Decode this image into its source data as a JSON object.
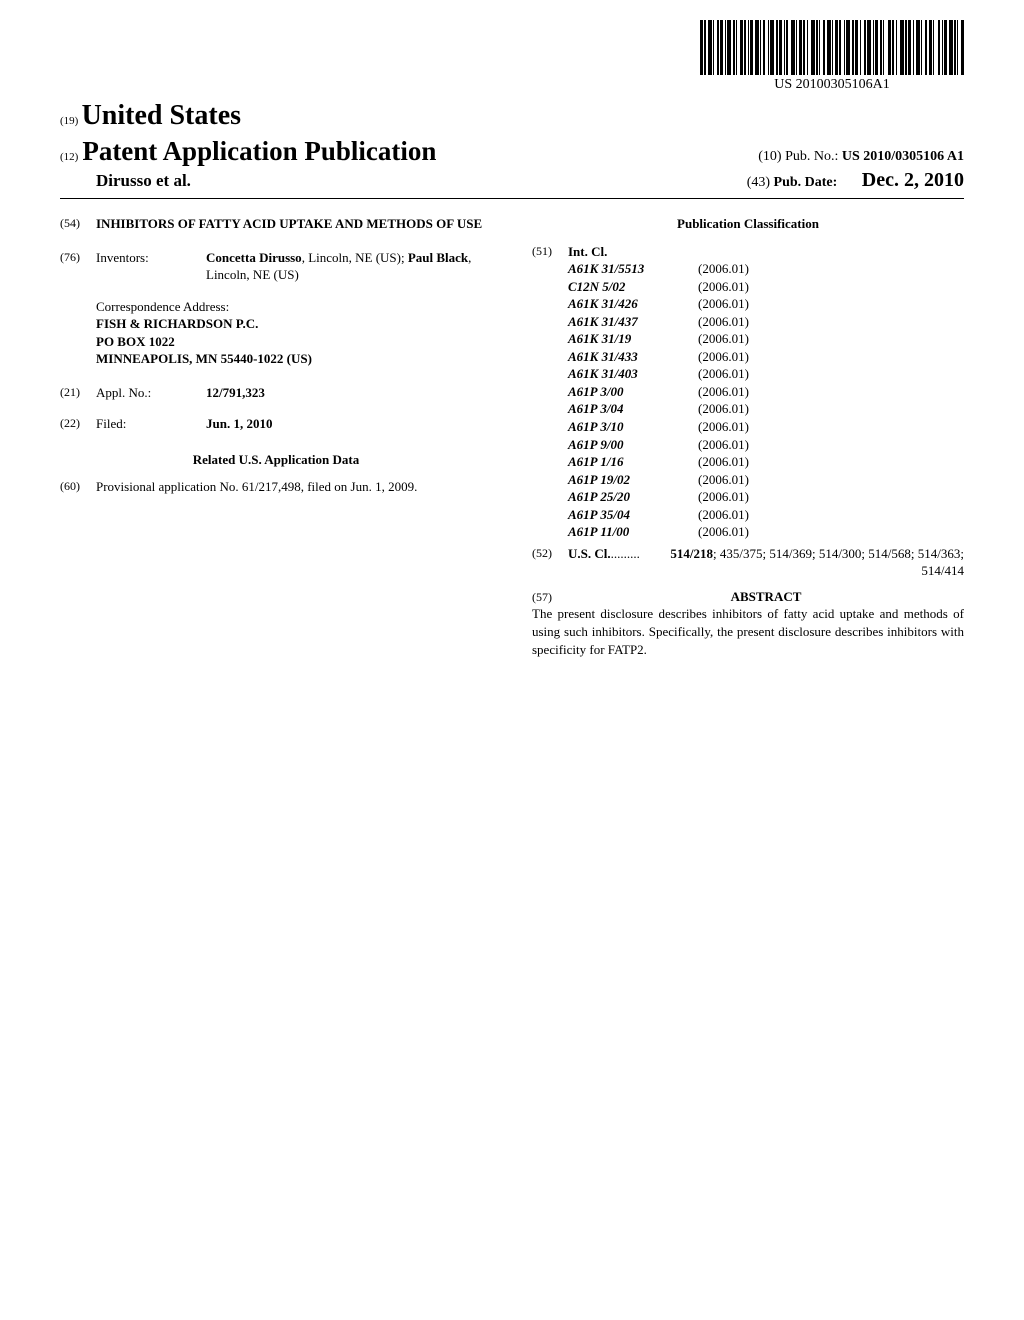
{
  "barcode_text": "US 20100305106A1",
  "header": {
    "inid19": "(19)",
    "country": "United States",
    "inid12": "(12)",
    "pub_type": "Patent Application Publication",
    "inid10": "(10)",
    "pub_no_label": "Pub. No.:",
    "pub_no": "US 2010/0305106 A1",
    "authors": "Dirusso et al.",
    "inid43": "(43)",
    "pub_date_label": "Pub. Date:",
    "pub_date": "Dec. 2, 2010"
  },
  "left": {
    "title_num": "(54)",
    "title": "INHIBITORS OF FATTY ACID UPTAKE AND METHODS OF USE",
    "inv_num": "(76)",
    "inv_label": "Inventors:",
    "inv1_name": "Concetta Dirusso",
    "inv1_loc": ", Lincoln, NE (US); ",
    "inv2_name": "Paul Black",
    "inv2_loc": ", Lincoln, NE (US)",
    "corr_label": "Correspondence Address:",
    "corr_line1": "FISH & RICHARDSON P.C.",
    "corr_line2": "PO BOX 1022",
    "corr_line3": "MINNEAPOLIS, MN 55440-1022 (US)",
    "appl_num_num": "(21)",
    "appl_num_label": "Appl. No.:",
    "appl_num": "12/791,323",
    "filed_num": "(22)",
    "filed_label": "Filed:",
    "filed": "Jun. 1, 2010",
    "related_hdr": "Related U.S. Application Data",
    "prov_num": "(60)",
    "prov_text": "Provisional application No. 61/217,498, filed on Jun. 1, 2009."
  },
  "right": {
    "pub_class_hdr": "Publication Classification",
    "intcl_num": "(51)",
    "intcl_label": "Int. Cl.",
    "intcl": [
      {
        "code": "A61K 31/5513",
        "year": "(2006.01)"
      },
      {
        "code": "C12N 5/02",
        "year": "(2006.01)"
      },
      {
        "code": "A61K 31/426",
        "year": "(2006.01)"
      },
      {
        "code": "A61K 31/437",
        "year": "(2006.01)"
      },
      {
        "code": "A61K 31/19",
        "year": "(2006.01)"
      },
      {
        "code": "A61K 31/433",
        "year": "(2006.01)"
      },
      {
        "code": "A61K 31/403",
        "year": "(2006.01)"
      },
      {
        "code": "A61P 3/00",
        "year": "(2006.01)"
      },
      {
        "code": "A61P 3/04",
        "year": "(2006.01)"
      },
      {
        "code": "A61P 3/10",
        "year": "(2006.01)"
      },
      {
        "code": "A61P 9/00",
        "year": "(2006.01)"
      },
      {
        "code": "A61P 1/16",
        "year": "(2006.01)"
      },
      {
        "code": "A61P 19/02",
        "year": "(2006.01)"
      },
      {
        "code": "A61P 25/20",
        "year": "(2006.01)"
      },
      {
        "code": "A61P 35/04",
        "year": "(2006.01)"
      },
      {
        "code": "A61P 11/00",
        "year": "(2006.01)"
      }
    ],
    "uscl_num": "(52)",
    "uscl_label": "U.S. Cl.",
    "uscl_dots": " ......... ",
    "uscl_bold": "514/218",
    "uscl_rest": "; 435/375; 514/369; 514/300; 514/568; 514/363; 514/414",
    "abstract_num": "(57)",
    "abstract_hdr": "ABSTRACT",
    "abstract_body": "The present disclosure describes inhibitors of fatty acid uptake and methods of using such inhibitors. Specifically, the present disclosure describes inhibitors with specificity for FATP2."
  }
}
